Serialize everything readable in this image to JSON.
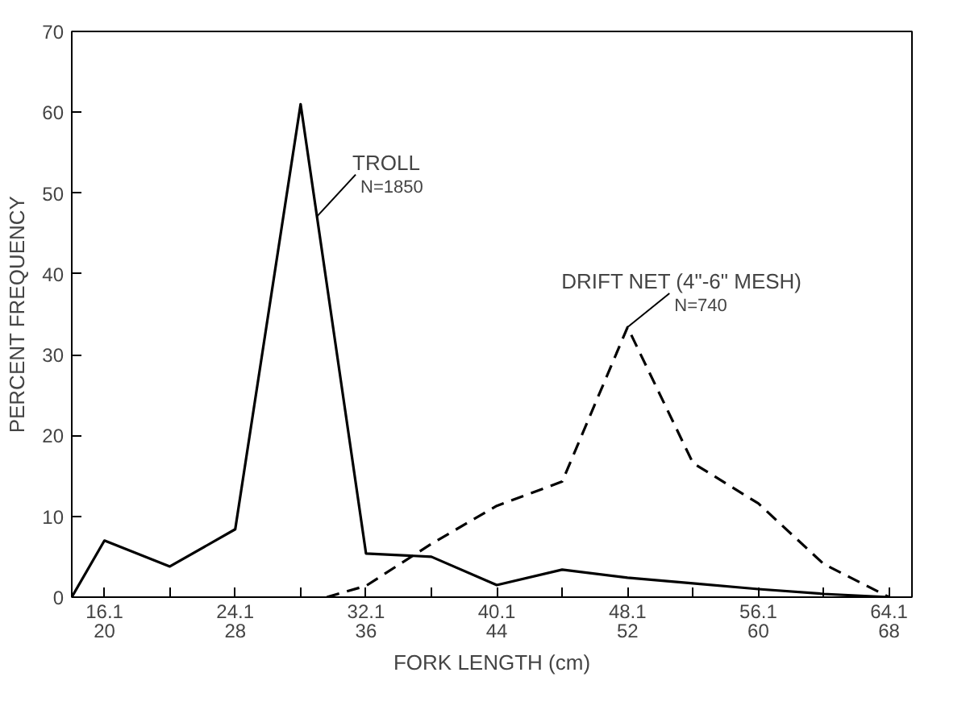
{
  "chart_data": {
    "type": "line",
    "xlabel": "FORK LENGTH (cm)",
    "ylabel": "PERCENT FREQUENCY",
    "xlim": [
      18,
      69.4
    ],
    "ylim": [
      0,
      70
    ],
    "xticks": [
      20,
      28,
      36,
      44,
      52,
      60,
      68
    ],
    "x2lim": [
      14.1,
      65.5
    ],
    "x2ticks": [
      16.1,
      {
        "value": 20.1,
        "label": null
      },
      24.1,
      {
        "value": 28.1,
        "label": null
      },
      32.1,
      {
        "value": 36.1,
        "label": null
      },
      40.1,
      {
        "value": 44.1,
        "label": null
      },
      48.1,
      {
        "value": 52.1,
        "label": null
      },
      56.1,
      {
        "value": 60.1,
        "label": null
      },
      64.1
    ],
    "yticks": [
      0,
      10,
      20,
      30,
      40,
      50,
      60,
      70
    ],
    "grid": false,
    "series": [
      {
        "color": "#000000",
        "line_style": "solid",
        "x": [
          18,
          20,
          24,
          28,
          32,
          36,
          40,
          44,
          48,
          52,
          56,
          60,
          64,
          68
        ],
        "values": [
          0,
          7,
          3.8,
          8.4,
          61,
          5.4,
          5,
          1.5,
          3.4,
          2.4,
          1.7,
          1,
          0.4,
          0
        ]
      },
      {
        "color": "#000000",
        "line_style": "dashed",
        "x": [
          33.6,
          36,
          40,
          44,
          48,
          52,
          56,
          60,
          64,
          68
        ],
        "values": [
          0,
          1.4,
          6.6,
          11.3,
          14.3,
          33.4,
          16.6,
          11.6,
          4.1,
          0
        ]
      }
    ],
    "annotations": [
      {
        "text": "TROLL\nN=1850",
        "x": 33,
        "y": 47.1
      },
      {
        "text": "DRIFT NET (4\"-6\" MESH)\nN=740",
        "x": 52,
        "y": 33.4
      }
    ]
  }
}
